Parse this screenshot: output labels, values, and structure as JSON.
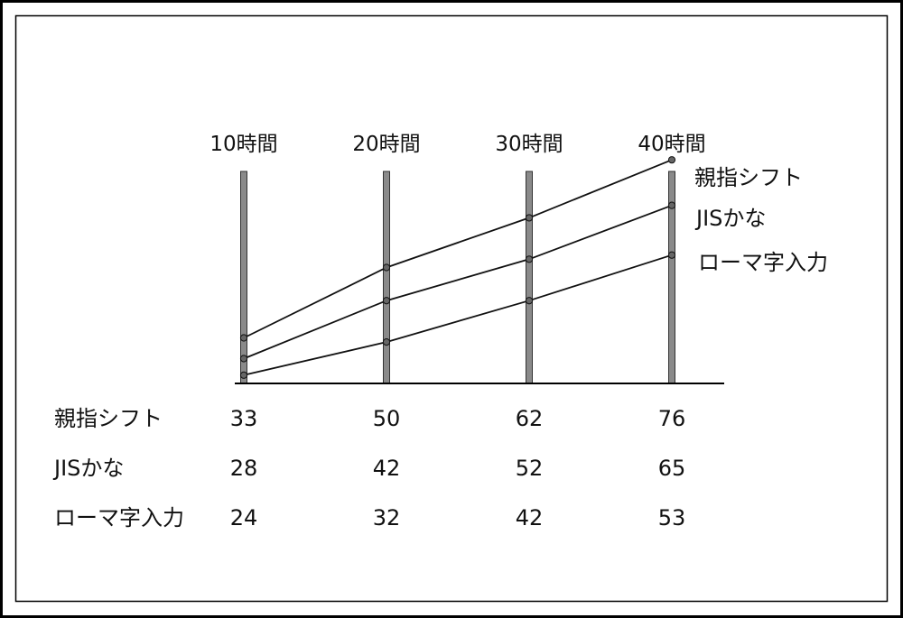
{
  "chart_data": {
    "type": "line",
    "title": "",
    "xlabel": "",
    "ylabel": "",
    "categories": [
      "10時間",
      "20時間",
      "30時間",
      "40時間"
    ],
    "series": [
      {
        "name": "親指シフト",
        "values": [
          33,
          50,
          62,
          76
        ]
      },
      {
        "name": "JISかな",
        "values": [
          28,
          42,
          52,
          65
        ]
      },
      {
        "name": "ローマ字入力",
        "values": [
          24,
          32,
          42,
          53
        ]
      }
    ],
    "ylim": [
      22,
      78
    ],
    "legend": "right",
    "grid": false,
    "table_below": true
  },
  "colors": {
    "line": "#111111",
    "column_fill": "#8a8a8a",
    "border": "#000000"
  }
}
